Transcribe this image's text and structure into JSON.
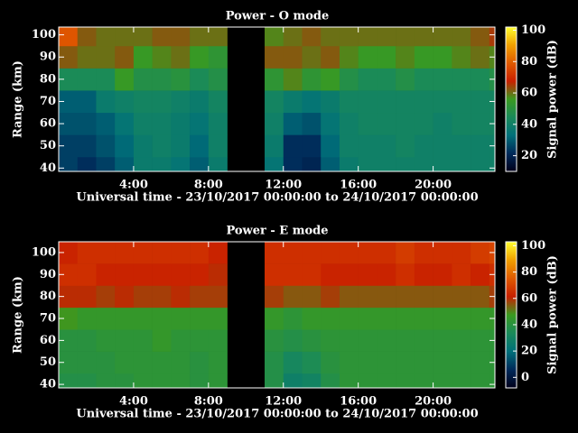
{
  "colormap": [
    "#00001a",
    "#002a5a",
    "#00707a",
    "#1a8a5a",
    "#3a9a20",
    "#c82000",
    "#e05a00",
    "#f0a000",
    "#ffff30"
  ],
  "chart_data": [
    {
      "type": "heatmap",
      "title": "Power - O mode",
      "xlabel": "Universal time - 23/10/2017 00:00:00 to 24/10/2017 00:00:00",
      "ylabel": "Range (km)",
      "x": [
        0,
        1,
        2,
        3,
        4,
        5,
        6,
        7,
        8,
        9,
        10,
        11,
        12,
        13,
        14,
        15,
        16,
        17,
        18,
        19,
        20,
        21,
        22,
        23
      ],
      "y": [
        40,
        50,
        60,
        70,
        80,
        90,
        100
      ],
      "values": [
        [
          25,
          22,
          25,
          30,
          38,
          38,
          35,
          30,
          38,
          null,
          null,
          35,
          22,
          20,
          30,
          38,
          40,
          40,
          40,
          40,
          40,
          40,
          40,
          40
        ],
        [
          25,
          25,
          28,
          32,
          38,
          40,
          38,
          32,
          40,
          null,
          null,
          38,
          22,
          22,
          32,
          40,
          40,
          40,
          42,
          40,
          40,
          40,
          40,
          40
        ],
        [
          28,
          28,
          30,
          35,
          40,
          40,
          38,
          35,
          40,
          null,
          null,
          40,
          30,
          28,
          35,
          40,
          42,
          42,
          42,
          42,
          40,
          42,
          42,
          42
        ],
        [
          30,
          30,
          38,
          40,
          42,
          42,
          40,
          38,
          42,
          null,
          null,
          42,
          38,
          35,
          38,
          42,
          42,
          42,
          42,
          42,
          42,
          42,
          42,
          42
        ],
        [
          45,
          45,
          45,
          55,
          48,
          48,
          50,
          45,
          48,
          null,
          null,
          52,
          58,
          52,
          55,
          48,
          45,
          45,
          48,
          45,
          45,
          45,
          45,
          48
        ],
        [
          62,
          60,
          60,
          62,
          55,
          58,
          60,
          55,
          52,
          null,
          null,
          62,
          62,
          60,
          62,
          58,
          55,
          55,
          58,
          55,
          55,
          58,
          60,
          58
        ],
        [
          78,
          62,
          60,
          60,
          60,
          62,
          62,
          60,
          60,
          null,
          null,
          58,
          60,
          62,
          60,
          60,
          60,
          60,
          60,
          60,
          60,
          60,
          62,
          65
        ]
      ],
      "xlim": [
        0,
        23.3
      ],
      "ylim": [
        38.5,
        103.5
      ],
      "xticks": [
        {
          "value": 4,
          "label": "4:00"
        },
        {
          "value": 8,
          "label": "8:00"
        },
        {
          "value": 12,
          "label": "12:00"
        },
        {
          "value": 16,
          "label": "16:00"
        },
        {
          "value": 20,
          "label": "20:00"
        }
      ],
      "yticks": [
        40,
        50,
        60,
        70,
        80,
        90,
        100
      ],
      "colorbar": {
        "label": "Signal power (dB)",
        "lim": [
          10,
          102
        ],
        "ticks": [
          20,
          40,
          60,
          80,
          100
        ]
      }
    },
    {
      "type": "heatmap",
      "title": "Power - E mode",
      "xlabel": "Universal time - 23/10/2017 00:00:00 to 24/10/2017 00:00:00",
      "ylabel": "Range (km)",
      "x": [
        0,
        1,
        2,
        3,
        4,
        5,
        6,
        7,
        8,
        9,
        10,
        11,
        12,
        13,
        14,
        15,
        16,
        17,
        18,
        19,
        20,
        21,
        22,
        23
      ],
      "y": [
        40,
        50,
        60,
        70,
        80,
        90,
        100
      ],
      "values": [
        [
          38,
          38,
          40,
          40,
          42,
          42,
          42,
          40,
          42,
          null,
          null,
          38,
          28,
          30,
          38,
          42,
          42,
          42,
          42,
          42,
          42,
          42,
          42,
          42
        ],
        [
          40,
          40,
          40,
          42,
          42,
          42,
          42,
          40,
          42,
          null,
          null,
          38,
          32,
          35,
          40,
          42,
          42,
          42,
          42,
          42,
          42,
          42,
          42,
          42
        ],
        [
          40,
          40,
          42,
          42,
          42,
          45,
          42,
          42,
          42,
          null,
          null,
          40,
          38,
          40,
          42,
          42,
          42,
          42,
          42,
          42,
          42,
          42,
          42,
          42
        ],
        [
          48,
          45,
          45,
          45,
          45,
          45,
          45,
          45,
          45,
          null,
          null,
          45,
          42,
          45,
          45,
          45,
          45,
          45,
          45,
          45,
          45,
          45,
          45,
          45
        ],
        [
          60,
          60,
          58,
          60,
          58,
          58,
          60,
          58,
          58,
          null,
          null,
          58,
          55,
          55,
          58,
          55,
          55,
          55,
          55,
          55,
          55,
          55,
          55,
          58
        ],
        [
          65,
          65,
          62,
          62,
          62,
          62,
          62,
          62,
          60,
          null,
          null,
          65,
          65,
          65,
          62,
          62,
          62,
          62,
          65,
          62,
          62,
          65,
          62,
          65
        ],
        [
          62,
          65,
          65,
          65,
          65,
          65,
          65,
          65,
          62,
          null,
          null,
          65,
          65,
          65,
          65,
          65,
          65,
          65,
          68,
          65,
          65,
          65,
          68,
          70
        ]
      ],
      "xlim": [
        0,
        23.3
      ],
      "ylim": [
        38.4,
        104.9
      ],
      "xticks": [
        {
          "value": 4,
          "label": "4:00"
        },
        {
          "value": 8,
          "label": "8:00"
        },
        {
          "value": 12,
          "label": "12:00"
        },
        {
          "value": 16,
          "label": "16:00"
        },
        {
          "value": 20,
          "label": "20:00"
        }
      ],
      "yticks": [
        40,
        50,
        60,
        70,
        80,
        90,
        100
      ],
      "colorbar": {
        "label": "Signal power (dB)",
        "lim": [
          -8,
          103
        ],
        "ticks": [
          0,
          20,
          40,
          60,
          80,
          100
        ]
      }
    }
  ]
}
